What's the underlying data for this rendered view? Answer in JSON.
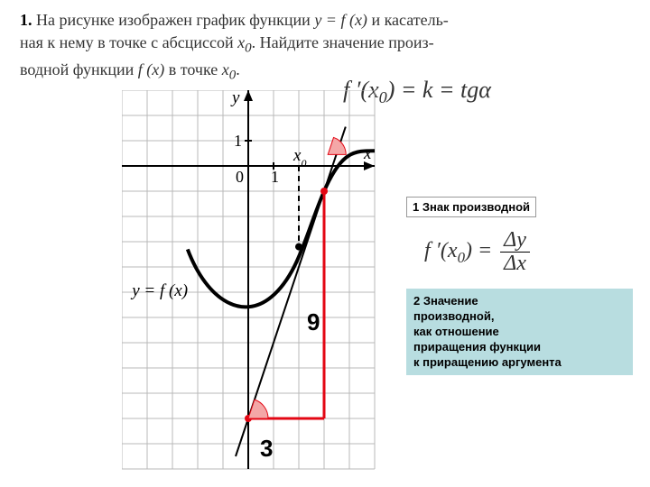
{
  "problem": {
    "number": "1.",
    "line1_a": "На рисунке изображен график функции ",
    "fn_eq": "y = f (x)",
    "line1_b": " и касатель-",
    "line2_a": "ная к нему в точке с абсциссой ",
    "x0": "x",
    "x0sub": "0",
    "line2_b": ". Найдите значение произ-",
    "line3_a": "водной функции ",
    "fx": "f (x)",
    "line3_b": " в точке ",
    "x0_2": "x",
    "x0sub_2": "0",
    "line3_c": "."
  },
  "formulas": {
    "top": {
      "pre": "f ′(x",
      "sub": "0",
      "post": ") = k = tgα"
    },
    "frac": {
      "pre": "f ′(x",
      "sub": "0",
      "post": ") = ",
      "num": "Δy",
      "den": "Δx"
    }
  },
  "notes": {
    "n1": "1 Знак производной",
    "n2_a": "2 Значение",
    "n2_b": "производной,",
    "n2_c": "как отношение",
    "n2_d": "приращения функции",
    "n2_e": "к приращению аргумента"
  },
  "vals": {
    "nine": "9",
    "three": "3"
  },
  "graph": {
    "cell": 28,
    "cols": 10,
    "rows": 15,
    "origin_col": 5,
    "origin_row": 3,
    "grid_color": "#b8b8b8",
    "axis_color": "#000000",
    "curve_color": "#000000",
    "tangent_color": "#000000",
    "triangle_color": "#e30613",
    "wedge_fill": "#f4a7a7",
    "labels": {
      "y": "y",
      "x": "x",
      "one_y": "1",
      "one_x": "1",
      "zero": "0",
      "x0": "x",
      "x0sub": "0",
      "yfx_pre": "y = ",
      "yfx": "f (x)"
    }
  }
}
